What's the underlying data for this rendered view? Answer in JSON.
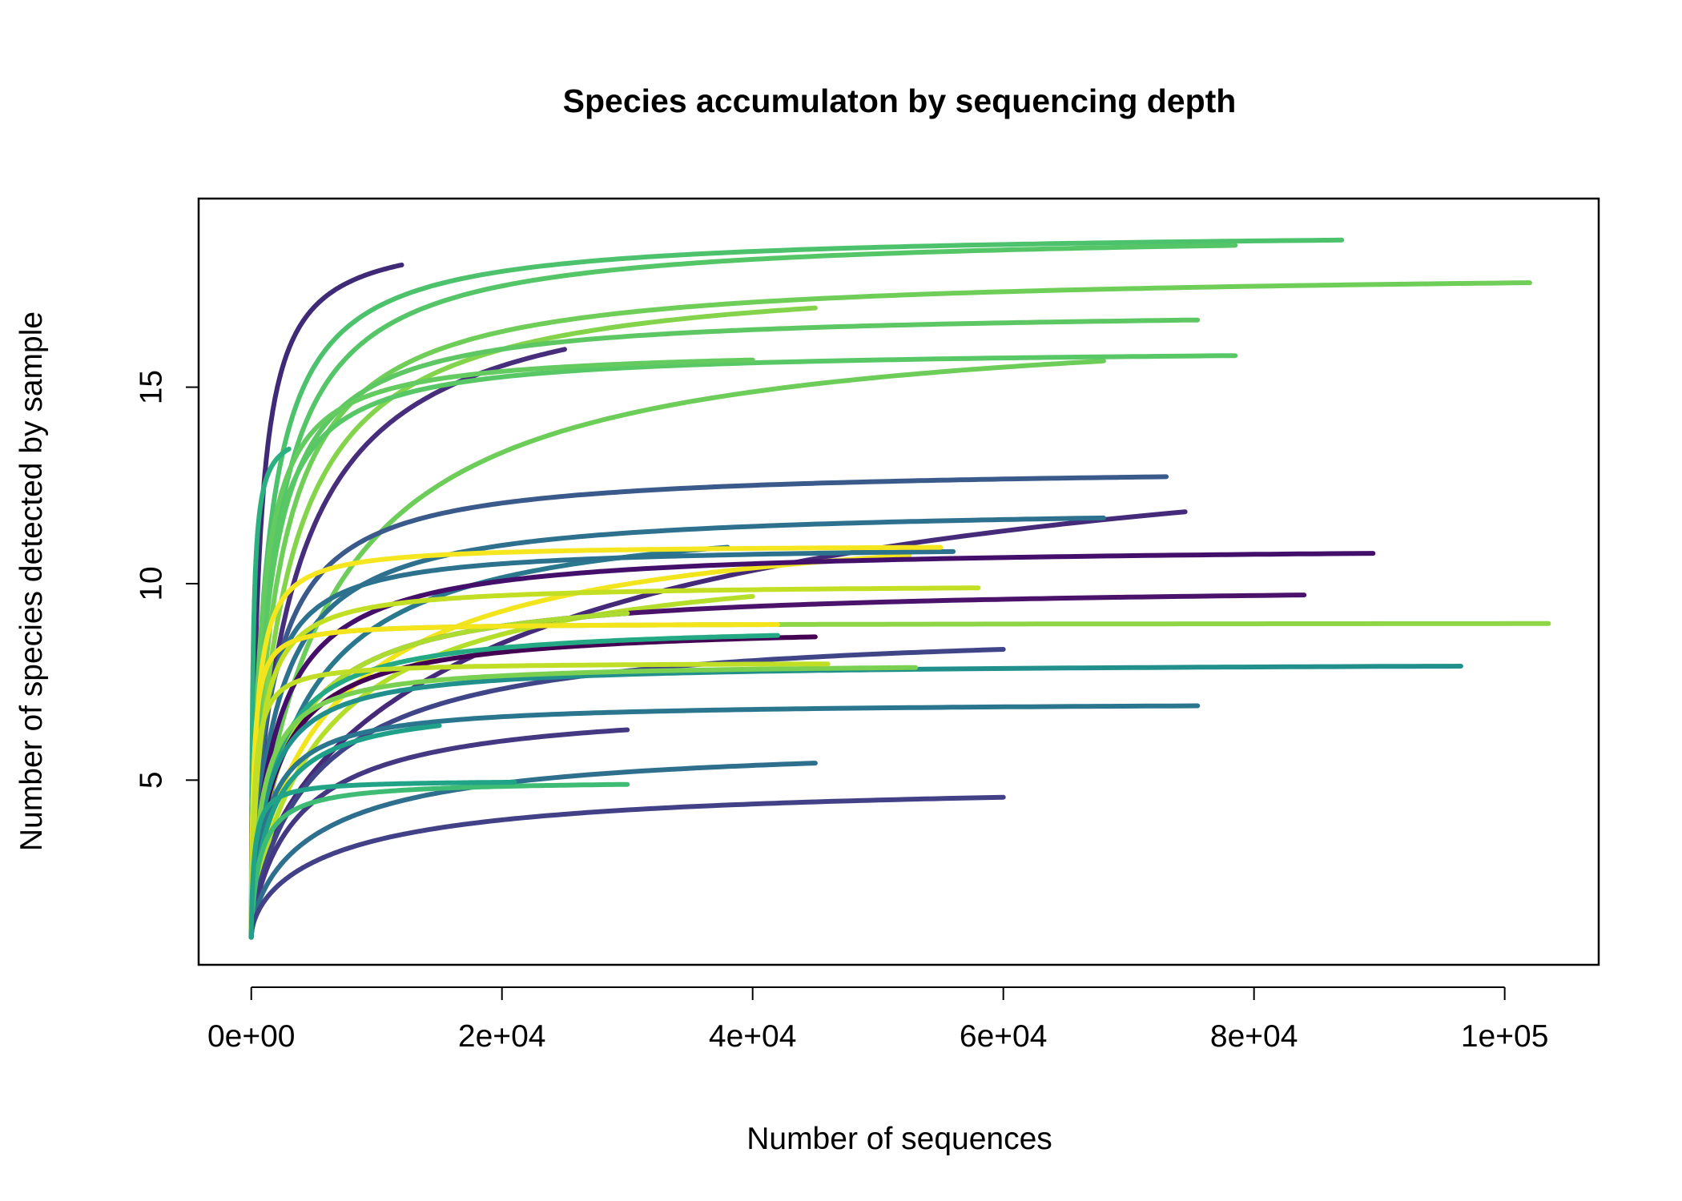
{
  "chart_data": {
    "type": "line",
    "title": "Species accumulaton by sequencing depth",
    "xlabel": "Number of sequences",
    "ylabel": "Number of species detected by sample",
    "xlim": [
      -4200,
      107500
    ],
    "ylim": [
      0.3,
      19.8
    ],
    "x_ticks": [
      {
        "value": 0,
        "label": "0e+00"
      },
      {
        "value": 20000,
        "label": "2e+04"
      },
      {
        "value": 40000,
        "label": "4e+04"
      },
      {
        "value": 60000,
        "label": "6e+04"
      },
      {
        "value": 80000,
        "label": "8e+04"
      },
      {
        "value": 100000,
        "label": "1e+05"
      }
    ],
    "y_ticks": [
      {
        "value": 5,
        "label": "5"
      },
      {
        "value": 10,
        "label": "10"
      },
      {
        "value": 15,
        "label": "15"
      }
    ],
    "grid": false,
    "legend": "none",
    "series": [
      {
        "color": "#3F2A78",
        "total": 19,
        "max_x": 12000,
        "rate": 900,
        "power": 0.7
      },
      {
        "color": "#4CC26C",
        "total": 19,
        "max_x": 87000,
        "rate": 1800,
        "power": 0.7
      },
      {
        "color": "#55C667",
        "total": 19,
        "max_x": 78500,
        "rate": 2500,
        "power": 0.7
      },
      {
        "color": "#472E7C",
        "total": 18,
        "max_x": 25000,
        "rate": 5000,
        "power": 0.7
      },
      {
        "color": "#6ECE58",
        "total": 18,
        "max_x": 102000,
        "rate": 3000,
        "power": 0.7
      },
      {
        "color": "#84D44B",
        "total": 18,
        "max_x": 45000,
        "rate": 4000,
        "power": 0.7
      },
      {
        "color": "#5DC863",
        "total": 17,
        "max_x": 75500,
        "rate": 2000,
        "power": 0.7
      },
      {
        "color": "#6DCD59",
        "total": 17,
        "max_x": 68000,
        "rate": 9000,
        "power": 0.7
      },
      {
        "color": "#58C765",
        "total": 16,
        "max_x": 78500,
        "rate": 1500,
        "power": 0.7
      },
      {
        "color": "#63CB5F",
        "total": 16,
        "max_x": 40000,
        "rate": 1200,
        "power": 0.7
      },
      {
        "color": "#452A7A",
        "total": 15,
        "max_x": 74500,
        "rate": 50000,
        "power": 0.5
      },
      {
        "color": "#2BB07F",
        "total": 14,
        "max_x": 3000,
        "rate": 200,
        "power": 0.7
      },
      {
        "color": "#3B5A8C",
        "total": 13,
        "max_x": 73000,
        "rate": 2500,
        "power": 0.7
      },
      {
        "color": "#2D718E",
        "total": 12,
        "max_x": 68000,
        "rate": 3000,
        "power": 0.7
      },
      {
        "color": "#2A788E",
        "total": 12,
        "max_x": 38000,
        "rate": 6000,
        "power": 0.7
      },
      {
        "color": "#F2E51D",
        "total": 12,
        "max_x": 52500,
        "rate": 12000,
        "power": 0.6
      },
      {
        "color": "#440F6B",
        "total": 11,
        "max_x": 89500,
        "rate": 3000,
        "power": 0.7
      },
      {
        "color": "#2C728E",
        "total": 11,
        "max_x": 56000,
        "rate": 1500,
        "power": 0.7
      },
      {
        "color": "#F5E61F",
        "total": 11,
        "max_x": 55000,
        "rate": 600,
        "power": 0.7
      },
      {
        "color": "#B5DE2B",
        "total": 11,
        "max_x": 40000,
        "rate": 9000,
        "power": 0.7
      },
      {
        "color": "#4A126B",
        "total": 10,
        "max_x": 84000,
        "rate": 4000,
        "power": 0.7
      },
      {
        "color": "#C2DF23",
        "total": 10,
        "max_x": 58000,
        "rate": 1000,
        "power": 0.7
      },
      {
        "color": "#ADDC30",
        "total": 10,
        "max_x": 30000,
        "rate": 4000,
        "power": 0.7
      },
      {
        "color": "#8ED645",
        "total": 9,
        "max_x": 103500,
        "rate": 300,
        "power": 0.7
      },
      {
        "color": "#440154",
        "total": 9,
        "max_x": 45000,
        "rate": 3000,
        "power": 0.7
      },
      {
        "color": "#404588",
        "total": 9,
        "max_x": 60000,
        "rate": 8000,
        "power": 0.7
      },
      {
        "color": "#23A983",
        "total": 9,
        "max_x": 42000,
        "rate": 2500,
        "power": 0.7
      },
      {
        "color": "#F4E41C",
        "total": 9,
        "max_x": 42000,
        "rate": 300,
        "power": 0.7
      },
      {
        "color": "#21908C",
        "total": 8,
        "max_x": 96500,
        "rate": 2000,
        "power": 0.7
      },
      {
        "color": "#7AD151",
        "total": 8,
        "max_x": 53000,
        "rate": 1500,
        "power": 0.7
      },
      {
        "color": "#C0DE25",
        "total": 8,
        "max_x": 46000,
        "rate": 400,
        "power": 0.7
      },
      {
        "color": "#2A768E",
        "total": 7,
        "max_x": 75500,
        "rate": 2000,
        "power": 0.7
      },
      {
        "color": "#453882",
        "total": 7,
        "max_x": 30000,
        "rate": 6000,
        "power": 0.7
      },
      {
        "color": "#1FA088",
        "total": 7,
        "max_x": 15000,
        "rate": 2500,
        "power": 0.7
      },
      {
        "color": "#2E6F8E",
        "total": 6,
        "max_x": 45000,
        "rate": 10000,
        "power": 0.6
      },
      {
        "color": "#3FBC73",
        "total": 5,
        "max_x": 30000,
        "rate": 1200,
        "power": 0.7
      },
      {
        "color": "#424086",
        "total": 5,
        "max_x": 60000,
        "rate": 14000,
        "power": 0.55
      },
      {
        "color": "#20A386",
        "total": 5,
        "max_x": 21000,
        "rate": 400,
        "power": 0.7
      }
    ]
  }
}
